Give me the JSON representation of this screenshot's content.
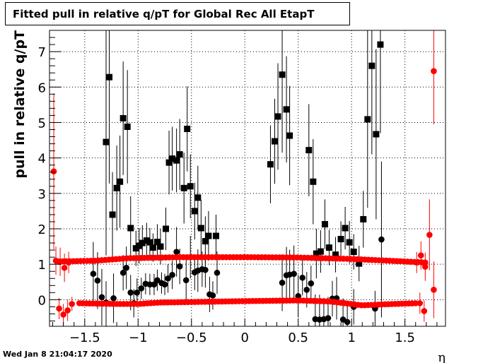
{
  "chart_data": {
    "type": "scatter",
    "title": "Fitted pull in relative q/pT for Global Rec All EtapT",
    "xlabel": "η",
    "ylabel": "pull in relative q/pT",
    "xlim": [
      -1.83,
      1.88
    ],
    "ylim": [
      -0.75,
      7.6
    ],
    "x_ticks": [
      -1.5,
      -1,
      -0.5,
      0,
      0.5,
      1,
      1.5
    ],
    "x_tick_labels": [
      "−1.5",
      "−1",
      "−0.5",
      "0",
      "0.5",
      "1",
      "1.5"
    ],
    "y_ticks": [
      0,
      1,
      2,
      3,
      4,
      5,
      6,
      7
    ],
    "y_tick_labels": [
      "0",
      "1",
      "2",
      "3",
      "4",
      "5",
      "6",
      "7"
    ],
    "grid": true,
    "legend": "none",
    "series": [
      {
        "marker": "square",
        "color": "#000000",
        "points": [
          [
            -1.3,
            4.45,
            3.2
          ],
          [
            -1.27,
            6.28,
            3.0
          ],
          [
            -1.24,
            2.4,
            1.2
          ],
          [
            -1.2,
            3.15,
            1.2
          ],
          [
            -1.17,
            3.33,
            1.3
          ],
          [
            -1.14,
            5.12,
            1.6
          ],
          [
            -1.1,
            4.88,
            1.6
          ],
          [
            -1.07,
            2.02,
            0.9
          ],
          [
            -1.02,
            1.45,
            0.5
          ],
          [
            -0.99,
            1.52,
            0.5
          ],
          [
            -0.96,
            1.6,
            0.5
          ],
          [
            -0.92,
            1.67,
            0.5
          ],
          [
            -0.89,
            1.62,
            0.4
          ],
          [
            -0.86,
            1.47,
            0.4
          ],
          [
            -0.82,
            1.63,
            0.5
          ],
          [
            -0.79,
            1.5,
            0.5
          ],
          [
            -0.74,
            2.0,
            0.6
          ],
          [
            -0.71,
            3.87,
            0.9
          ],
          [
            -0.68,
            3.98,
            0.9
          ],
          [
            -0.64,
            3.93,
            0.9
          ],
          [
            -0.61,
            4.1,
            1.0
          ],
          [
            -0.57,
            3.15,
            1.0
          ],
          [
            -0.54,
            4.82,
            1.2
          ],
          [
            -0.51,
            3.2,
            0.9
          ],
          [
            -0.47,
            2.5,
            0.8
          ],
          [
            -0.44,
            2.88,
            0.9
          ],
          [
            -0.41,
            2.02,
            0.8
          ],
          [
            -0.37,
            1.65,
            0.7
          ],
          [
            -0.34,
            1.8,
            0.7
          ],
          [
            -0.27,
            1.8,
            0.6
          ],
          [
            0.24,
            3.82,
            1.1
          ],
          [
            0.28,
            4.47,
            1.2
          ],
          [
            0.31,
            5.17,
            1.5
          ],
          [
            0.35,
            6.35,
            2.2
          ],
          [
            0.39,
            5.37,
            1.5
          ],
          [
            0.42,
            4.63,
            1.4
          ],
          [
            0.6,
            4.22,
            1.3
          ],
          [
            0.64,
            3.33,
            1.2
          ],
          [
            0.67,
            1.3,
            0.7
          ],
          [
            0.71,
            1.36,
            0.6
          ],
          [
            0.75,
            2.13,
            0.7
          ],
          [
            0.79,
            1.47,
            0.5
          ],
          [
            0.85,
            1.27,
            0.5
          ],
          [
            0.9,
            1.71,
            0.5
          ],
          [
            0.94,
            2.02,
            0.6
          ],
          [
            0.98,
            1.62,
            0.6
          ],
          [
            1.02,
            1.35,
            0.5
          ],
          [
            1.07,
            1.02,
            0.5
          ],
          [
            1.11,
            2.27,
            0.8
          ],
          [
            1.15,
            5.09,
            2.5
          ],
          [
            1.19,
            6.6,
            2.5
          ],
          [
            1.23,
            4.67,
            2.4
          ],
          [
            1.27,
            7.2,
            2.5
          ]
        ]
      },
      {
        "marker": "circle",
        "color": "#000000",
        "points": [
          [
            -1.42,
            0.73,
            0.9
          ],
          [
            -1.38,
            0.54,
            0.8
          ],
          [
            -1.34,
            0.07,
            0.8
          ],
          [
            -1.3,
            -0.08,
            0.6
          ],
          [
            -1.23,
            0.04,
            0.7
          ],
          [
            -1.14,
            0.76,
            0.5
          ],
          [
            -1.11,
            0.9,
            0.6
          ],
          [
            -1.07,
            0.2,
            0.5
          ],
          [
            -1.04,
            -0.1,
            0.4
          ],
          [
            -1.01,
            0.2,
            0.4
          ],
          [
            -0.97,
            0.32,
            0.3
          ],
          [
            -0.93,
            0.45,
            0.3
          ],
          [
            -0.89,
            0.43,
            0.3
          ],
          [
            -0.85,
            0.43,
            0.3
          ],
          [
            -0.82,
            0.55,
            0.3
          ],
          [
            -0.78,
            0.47,
            0.3
          ],
          [
            -0.75,
            0.43,
            0.3
          ],
          [
            -0.72,
            0.6,
            0.4
          ],
          [
            -0.68,
            0.7,
            0.4
          ],
          [
            -0.64,
            1.35,
            0.7
          ],
          [
            -0.61,
            0.94,
            0.5
          ],
          [
            -0.55,
            0.55,
            0.6
          ],
          [
            -0.51,
            1.2,
            0.6
          ],
          [
            -0.47,
            0.77,
            0.5
          ],
          [
            -0.44,
            0.82,
            0.6
          ],
          [
            -0.4,
            0.86,
            0.5
          ],
          [
            -0.37,
            0.84,
            0.5
          ],
          [
            -0.33,
            0.15,
            0.5
          ],
          [
            -0.3,
            0.12,
            0.4
          ],
          [
            -0.26,
            0.76,
            0.6
          ],
          [
            0.35,
            0.48,
            0.8
          ],
          [
            0.39,
            0.69,
            0.8
          ],
          [
            0.42,
            0.71,
            0.7
          ],
          [
            0.46,
            0.73,
            0.8
          ],
          [
            0.5,
            0.1,
            0.6
          ],
          [
            0.54,
            0.62,
            0.5
          ],
          [
            0.58,
            0.28,
            0.5
          ],
          [
            0.62,
            0.46,
            0.5
          ],
          [
            0.66,
            -0.55,
            0.7
          ],
          [
            0.7,
            -0.56,
            0.7
          ],
          [
            0.74,
            -0.55,
            0.6
          ],
          [
            0.78,
            -0.52,
            0.6
          ],
          [
            0.82,
            0.03,
            0.5
          ],
          [
            0.86,
            0.04,
            0.6
          ],
          [
            0.92,
            -0.56,
            0.6
          ],
          [
            0.96,
            -0.63,
            0.6
          ],
          [
            1.02,
            -0.2,
            0.5
          ],
          [
            1.22,
            -0.25,
            0.5
          ],
          [
            1.28,
            1.7,
            2.2
          ]
        ]
      },
      {
        "marker": "circle",
        "color": "#ff0000",
        "generated": [
          {
            "x_from": -1.74,
            "x_to": 1.69,
            "n": 104,
            "y_profile": [
              [
                -1.74,
                1.08
              ],
              [
                -1.4,
                1.1
              ],
              [
                -1.1,
                1.17
              ],
              [
                -0.6,
                1.2
              ],
              [
                0.0,
                1.2
              ],
              [
                0.5,
                1.19
              ],
              [
                1.0,
                1.15
              ],
              [
                1.35,
                1.1
              ],
              [
                1.69,
                1.05
              ]
            ],
            "err": 0.06
          },
          {
            "x_from": -1.55,
            "x_to": 1.6,
            "n": 100,
            "y_profile": [
              [
                -1.55,
                -0.1
              ],
              [
                -1.2,
                -0.12
              ],
              [
                -1.0,
                -0.12
              ],
              [
                -0.8,
                -0.08
              ],
              [
                -0.4,
                -0.06
              ],
              [
                0.0,
                -0.04
              ],
              [
                0.5,
                -0.02
              ],
              [
                0.8,
                -0.05
              ],
              [
                1.1,
                -0.16
              ],
              [
                1.3,
                -0.13
              ],
              [
                1.6,
                -0.1
              ]
            ],
            "err": 0.05
          }
        ],
        "points": [
          [
            -1.79,
            3.62,
            2.2
          ],
          [
            -1.77,
            1.1,
            0.4
          ],
          [
            -1.73,
            1.07,
            0.4
          ],
          [
            -1.69,
            0.9,
            0.4
          ],
          [
            -1.65,
            1.05,
            0.3
          ],
          [
            -1.74,
            -0.25,
            0.3
          ],
          [
            -1.7,
            -0.42,
            0.3
          ],
          [
            -1.66,
            -0.3,
            0.3
          ],
          [
            -1.62,
            -0.12,
            0.2
          ],
          [
            1.61,
            1.05,
            0.3
          ],
          [
            1.65,
            1.25,
            0.4
          ],
          [
            1.69,
            0.93,
            0.4
          ],
          [
            1.73,
            1.83,
            1.0
          ],
          [
            1.77,
            6.45,
            1.5
          ],
          [
            1.64,
            -0.1,
            0.3
          ],
          [
            1.68,
            -0.32,
            0.3
          ],
          [
            1.77,
            0.28,
            0.8
          ]
        ]
      }
    ]
  },
  "footer": {
    "datestamp": "Wed Jan  8 21:04:17 2020"
  }
}
